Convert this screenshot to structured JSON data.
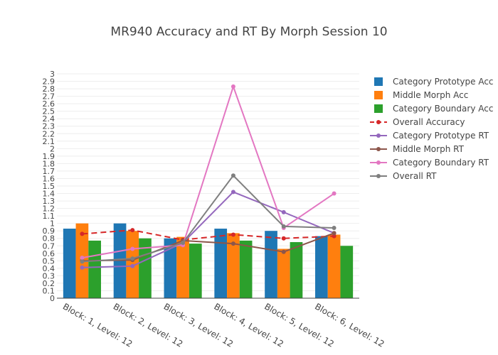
{
  "chart_data": {
    "type": "bar",
    "title": "MR940 Accuracy and RT By Morph Session 10",
    "xlabel": "",
    "ylabel": "",
    "ylim": [
      0,
      3
    ],
    "yticks": [
      "0",
      "0.1",
      "0.2",
      "0.3",
      "0.4",
      "0.5",
      "0.6",
      "0.7",
      "0.8",
      "0.9",
      "1",
      "1.1",
      "1.2",
      "1.3",
      "1.4",
      "1.5",
      "1.6",
      "1.7",
      "1.8",
      "1.9",
      "2",
      "2.1",
      "2.2",
      "2.3",
      "2.4",
      "2.5",
      "2.6",
      "2.7",
      "2.8",
      "2.9",
      "3"
    ],
    "grid": true,
    "legend_position": "right",
    "categories": [
      "Block: 1, Level: 12",
      "Block: 2, Level: 12",
      "Block: 3, Level: 12",
      "Block: 4, Level: 12",
      "Block: 5, Level: 12",
      "Block: 6, Level: 12"
    ],
    "bar_series": [
      {
        "name": "Category Prototype Acc",
        "color": "#1f77b4",
        "values": [
          0.93,
          1.0,
          0.8,
          0.93,
          0.9,
          0.83
        ]
      },
      {
        "name": "Middle Morph Acc",
        "color": "#ff7f0e",
        "values": [
          1.0,
          0.9,
          0.82,
          0.87,
          0.66,
          0.85
        ]
      },
      {
        "name": "Category Boundary Acc",
        "color": "#2ca02c",
        "values": [
          0.77,
          0.8,
          0.73,
          0.77,
          0.75,
          0.7
        ]
      }
    ],
    "line_series": [
      {
        "name": "Overall Accuracy",
        "color": "#d62728",
        "dash": true,
        "values": [
          0.86,
          0.91,
          0.78,
          0.85,
          0.8,
          0.83
        ]
      },
      {
        "name": "Category Prototype RT",
        "color": "#9467bd",
        "dash": false,
        "values": [
          0.41,
          0.43,
          0.74,
          1.42,
          1.15,
          0.87
        ]
      },
      {
        "name": "Middle Morph RT",
        "color": "#8c564b",
        "dash": false,
        "values": [
          0.5,
          0.51,
          0.77,
          0.73,
          0.62,
          0.87
        ]
      },
      {
        "name": "Category Boundary RT",
        "color": "#e377c2",
        "dash": false,
        "values": [
          0.54,
          0.66,
          0.71,
          2.83,
          0.94,
          1.4
        ]
      },
      {
        "name": "Overall RT",
        "color": "#7f7f7f",
        "dash": false,
        "values": [
          0.49,
          0.53,
          0.74,
          1.64,
          0.96,
          0.94
        ]
      }
    ]
  }
}
